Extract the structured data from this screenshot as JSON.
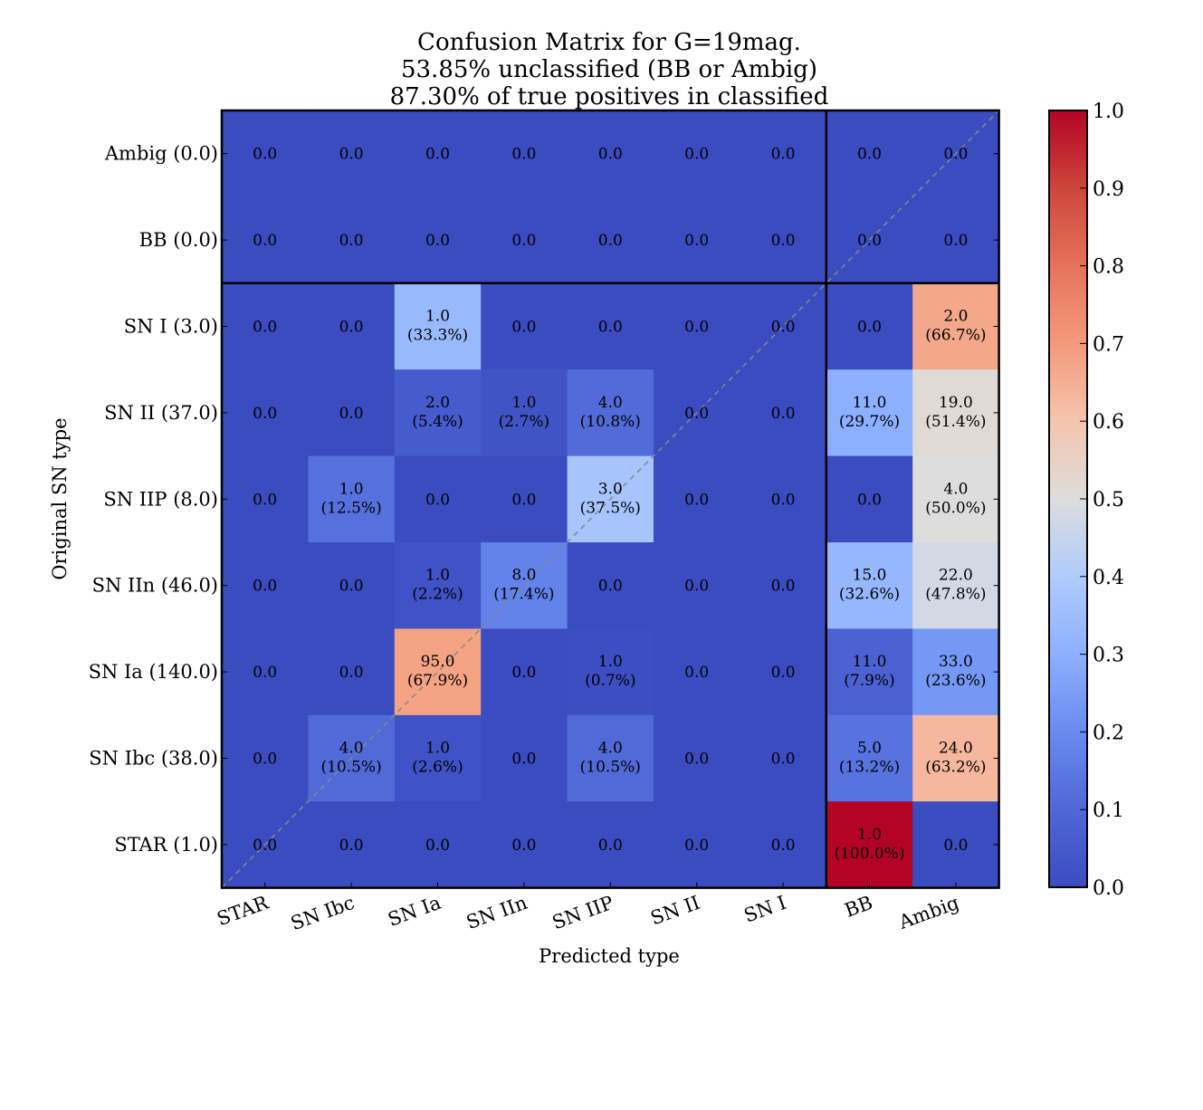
{
  "chart_data": {
    "type": "heatmap",
    "title_lines": [
      "Confusion Matrix for G=19mag.",
      "53.85% unclassified (BB or Ambig)",
      "87.30% of true positives in classified"
    ],
    "xlabel": "Predicted type",
    "ylabel": "Original SN type",
    "x_categories": [
      "STAR",
      "SN Ibc",
      "SN Ia",
      "SN IIn",
      "SN IIP",
      "SN II",
      "SN I",
      "BB",
      "Ambig"
    ],
    "y_categories": [
      "Ambig (0.0)",
      "BB (0.0)",
      "SN I (3.0)",
      "SN II (37.0)",
      "SN IIP (8.0)",
      "SN IIn (46.0)",
      "SN Ia (140.0)",
      "SN Ibc (38.0)",
      "STAR (1.0)"
    ],
    "counts": [
      [
        0,
        0,
        0,
        0,
        0,
        0,
        0,
        0,
        0
      ],
      [
        0,
        0,
        0,
        0,
        0,
        0,
        0,
        0,
        0
      ],
      [
        0,
        0,
        1,
        0,
        0,
        0,
        0,
        0,
        2
      ],
      [
        0,
        0,
        2,
        1,
        4,
        0,
        0,
        11,
        19
      ],
      [
        0,
        1,
        0,
        0,
        3,
        0,
        0,
        0,
        4
      ],
      [
        0,
        0,
        1,
        8,
        0,
        0,
        0,
        15,
        22
      ],
      [
        0,
        0,
        95,
        0,
        1,
        0,
        0,
        11,
        33
      ],
      [
        0,
        4,
        1,
        0,
        4,
        0,
        0,
        5,
        24
      ],
      [
        0,
        0,
        0,
        0,
        0,
        0,
        0,
        1,
        0
      ]
    ],
    "cell_labels": [
      [
        [
          "0.0",
          ""
        ],
        [
          "0.0",
          ""
        ],
        [
          "0.0",
          ""
        ],
        [
          "0.0",
          ""
        ],
        [
          "0.0",
          ""
        ],
        [
          "0.0",
          ""
        ],
        [
          "0.0",
          ""
        ],
        [
          "0.0",
          ""
        ],
        [
          "0.0",
          ""
        ]
      ],
      [
        [
          "0.0",
          ""
        ],
        [
          "0.0",
          ""
        ],
        [
          "0.0",
          ""
        ],
        [
          "0.0",
          ""
        ],
        [
          "0.0",
          ""
        ],
        [
          "0.0",
          ""
        ],
        [
          "0.0",
          ""
        ],
        [
          "0.0",
          ""
        ],
        [
          "0.0",
          ""
        ]
      ],
      [
        [
          "0.0",
          ""
        ],
        [
          "0.0",
          ""
        ],
        [
          "1.0",
          "(33.3%)"
        ],
        [
          "0.0",
          ""
        ],
        [
          "0.0",
          ""
        ],
        [
          "0.0",
          ""
        ],
        [
          "0.0",
          ""
        ],
        [
          "0.0",
          ""
        ],
        [
          "2.0",
          "(66.7%)"
        ]
      ],
      [
        [
          "0.0",
          ""
        ],
        [
          "0.0",
          ""
        ],
        [
          "2.0",
          "(5.4%)"
        ],
        [
          "1.0",
          "(2.7%)"
        ],
        [
          "4.0",
          "(10.8%)"
        ],
        [
          "0.0",
          ""
        ],
        [
          "0.0",
          ""
        ],
        [
          "11.0",
          "(29.7%)"
        ],
        [
          "19.0",
          "(51.4%)"
        ]
      ],
      [
        [
          "0.0",
          ""
        ],
        [
          "1.0",
          "(12.5%)"
        ],
        [
          "0.0",
          ""
        ],
        [
          "0.0",
          ""
        ],
        [
          "3.0",
          "(37.5%)"
        ],
        [
          "0.0",
          ""
        ],
        [
          "0.0",
          ""
        ],
        [
          "0.0",
          ""
        ],
        [
          "4.0",
          "(50.0%)"
        ]
      ],
      [
        [
          "0.0",
          ""
        ],
        [
          "0.0",
          ""
        ],
        [
          "1.0",
          "(2.2%)"
        ],
        [
          "8.0",
          "(17.4%)"
        ],
        [
          "0.0",
          ""
        ],
        [
          "0.0",
          ""
        ],
        [
          "0.0",
          ""
        ],
        [
          "15.0",
          "(32.6%)"
        ],
        [
          "22.0",
          "(47.8%)"
        ]
      ],
      [
        [
          "0.0",
          ""
        ],
        [
          "0.0",
          ""
        ],
        [
          "95.0",
          "(67.9%)"
        ],
        [
          "0.0",
          ""
        ],
        [
          "1.0",
          "(0.7%)"
        ],
        [
          "0.0",
          ""
        ],
        [
          "0.0",
          ""
        ],
        [
          "11.0",
          "(7.9%)"
        ],
        [
          "33.0",
          "(23.6%)"
        ]
      ],
      [
        [
          "0.0",
          ""
        ],
        [
          "4.0",
          "(10.5%)"
        ],
        [
          "1.0",
          "(2.6%)"
        ],
        [
          "0.0",
          ""
        ],
        [
          "4.0",
          "(10.5%)"
        ],
        [
          "0.0",
          ""
        ],
        [
          "0.0",
          ""
        ],
        [
          "5.0",
          "(13.2%)"
        ],
        [
          "24.0",
          "(63.2%)"
        ]
      ],
      [
        [
          "0.0",
          ""
        ],
        [
          "0.0",
          ""
        ],
        [
          "0.0",
          ""
        ],
        [
          "0.0",
          ""
        ],
        [
          "0.0",
          ""
        ],
        [
          "0.0",
          ""
        ],
        [
          "0.0",
          ""
        ],
        [
          "1.0",
          "(100.0%)"
        ],
        [
          "0.0",
          ""
        ]
      ]
    ],
    "fractions": [
      [
        0,
        0,
        0,
        0,
        0,
        0,
        0,
        0,
        0
      ],
      [
        0,
        0,
        0,
        0,
        0,
        0,
        0,
        0,
        0
      ],
      [
        0,
        0,
        0.333,
        0,
        0,
        0,
        0,
        0,
        0.667
      ],
      [
        0,
        0,
        0.054,
        0.027,
        0.108,
        0,
        0,
        0.297,
        0.514
      ],
      [
        0,
        0.125,
        0,
        0,
        0.375,
        0,
        0,
        0,
        0.5
      ],
      [
        0,
        0,
        0.022,
        0.174,
        0,
        0,
        0,
        0.326,
        0.478
      ],
      [
        0,
        0,
        0.679,
        0,
        0.007,
        0,
        0,
        0.079,
        0.236
      ],
      [
        0,
        0.105,
        0.026,
        0,
        0.105,
        0,
        0,
        0.132,
        0.632
      ],
      [
        0,
        0,
        0,
        0,
        0,
        0,
        0,
        1.0,
        0
      ]
    ],
    "colorbar": {
      "min": 0.0,
      "max": 1.0,
      "ticks": [
        "0.0",
        "0.1",
        "0.2",
        "0.3",
        "0.4",
        "0.5",
        "0.6",
        "0.7",
        "0.8",
        "0.9",
        "1.0"
      ],
      "colormap": "coolwarm"
    },
    "separator_after_column": "SN I",
    "separator_after_row": "BB (0.0)",
    "diagonal_line": true
  }
}
